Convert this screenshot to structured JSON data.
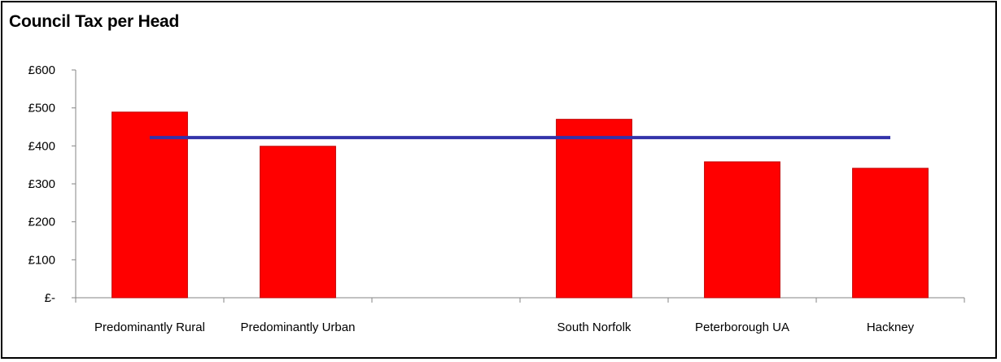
{
  "chart_data": {
    "type": "bar",
    "title": "Council Tax per Head",
    "categories": [
      "Predominantly Rural",
      "Predominantly Urban",
      "",
      "South Norfolk",
      "Peterborough UA",
      "Hackney"
    ],
    "values": [
      489,
      399,
      null,
      470,
      358,
      341
    ],
    "overlay_line": {
      "value": 422
    },
    "ylim": [
      0,
      600
    ],
    "yticks": [
      0,
      100,
      200,
      300,
      400,
      500,
      600
    ],
    "ytick_labels": [
      "£-",
      "£100",
      "£200",
      "£300",
      "£400",
      "£500",
      "£600"
    ],
    "xlabel": "",
    "ylabel": "",
    "grid": false,
    "colors": {
      "bar": "#ff0000",
      "bar_edge": "#c00000",
      "line": "#3333aa",
      "axis": "#868686"
    }
  }
}
